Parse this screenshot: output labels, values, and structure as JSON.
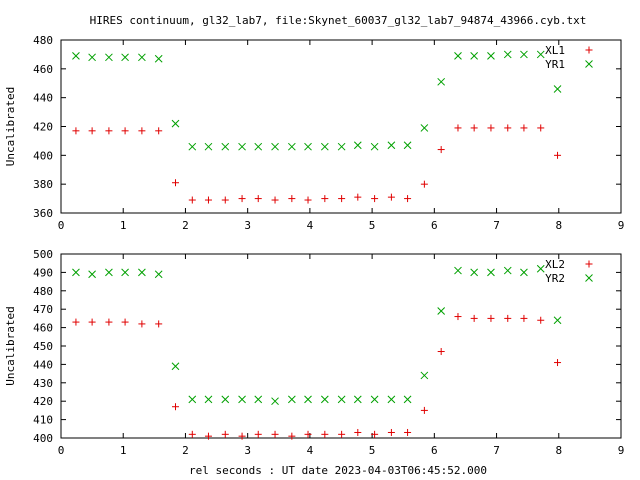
{
  "title": "HIRES continuum, gl32_lab7, file:Skynet_60037_gl32_lab7_94874_43966.cyb.txt",
  "xlabel": "rel seconds : UT date 2023-04-03T06:45:52.000",
  "colors": {
    "red": "#e00000",
    "green": "#00a000"
  },
  "chart_data": [
    {
      "type": "scatter",
      "ylabel": "Uncalibrated",
      "xlim": [
        0,
        9
      ],
      "ylim": [
        360,
        480
      ],
      "xticks": [
        0,
        1,
        2,
        3,
        4,
        5,
        6,
        7,
        8,
        9
      ],
      "yticks": [
        360,
        380,
        400,
        420,
        440,
        460,
        480
      ],
      "grid": false,
      "legend_position": "top-right",
      "series": [
        {
          "name": "XL1",
          "marker": "plus",
          "color": "#e00000",
          "x": [
            0.24,
            0.5,
            0.77,
            1.03,
            1.3,
            1.57,
            1.84,
            2.11,
            2.37,
            2.64,
            2.91,
            3.17,
            3.44,
            3.71,
            3.97,
            4.24,
            4.51,
            4.77,
            5.04,
            5.31,
            5.57,
            5.84,
            6.11,
            6.38,
            6.64,
            6.91,
            7.18,
            7.44,
            7.71,
            7.98
          ],
          "y": [
            417,
            417,
            417,
            417,
            417,
            417,
            381,
            369,
            369,
            369,
            370,
            370,
            369,
            370,
            369,
            370,
            370,
            371,
            370,
            371,
            370,
            380,
            404,
            419,
            419,
            419,
            419,
            419,
            419,
            400
          ]
        },
        {
          "name": "YR1",
          "marker": "cross",
          "color": "#00a000",
          "x": [
            0.24,
            0.5,
            0.77,
            1.03,
            1.3,
            1.57,
            1.84,
            2.11,
            2.37,
            2.64,
            2.91,
            3.17,
            3.44,
            3.71,
            3.97,
            4.24,
            4.51,
            4.77,
            5.04,
            5.31,
            5.57,
            5.84,
            6.11,
            6.38,
            6.64,
            6.91,
            7.18,
            7.44,
            7.71,
            7.98
          ],
          "y": [
            469,
            468,
            468,
            468,
            468,
            467,
            422,
            406,
            406,
            406,
            406,
            406,
            406,
            406,
            406,
            406,
            406,
            407,
            406,
            407,
            407,
            419,
            451,
            469,
            469,
            469,
            470,
            470,
            470,
            446
          ]
        }
      ]
    },
    {
      "type": "scatter",
      "ylabel": "Uncalibrated",
      "xlim": [
        0,
        9
      ],
      "ylim": [
        400,
        500
      ],
      "xticks": [
        0,
        1,
        2,
        3,
        4,
        5,
        6,
        7,
        8,
        9
      ],
      "yticks": [
        400,
        410,
        420,
        430,
        440,
        450,
        460,
        470,
        480,
        490,
        500
      ],
      "grid": false,
      "legend_position": "top-right",
      "series": [
        {
          "name": "XL2",
          "marker": "plus",
          "color": "#e00000",
          "x": [
            0.24,
            0.5,
            0.77,
            1.03,
            1.3,
            1.57,
            1.84,
            2.11,
            2.37,
            2.64,
            2.91,
            3.17,
            3.44,
            3.71,
            3.97,
            4.24,
            4.51,
            4.77,
            5.04,
            5.31,
            5.57,
            5.84,
            6.11,
            6.38,
            6.64,
            6.91,
            7.18,
            7.44,
            7.71,
            7.98
          ],
          "y": [
            463,
            463,
            463,
            463,
            462,
            462,
            417,
            402,
            401,
            402,
            401,
            402,
            402,
            401,
            402,
            402,
            402,
            403,
            402,
            403,
            403,
            415,
            447,
            466,
            465,
            465,
            465,
            465,
            464,
            441
          ]
        },
        {
          "name": "YR2",
          "marker": "cross",
          "color": "#00a000",
          "x": [
            0.24,
            0.5,
            0.77,
            1.03,
            1.3,
            1.57,
            1.84,
            2.11,
            2.37,
            2.64,
            2.91,
            3.17,
            3.44,
            3.71,
            3.97,
            4.24,
            4.51,
            4.77,
            5.04,
            5.31,
            5.57,
            5.84,
            6.11,
            6.38,
            6.64,
            6.91,
            7.18,
            7.44,
            7.71,
            7.98
          ],
          "y": [
            490,
            489,
            490,
            490,
            490,
            489,
            439,
            421,
            421,
            421,
            421,
            421,
            420,
            421,
            421,
            421,
            421,
            421,
            421,
            421,
            421,
            434,
            469,
            491,
            490,
            490,
            491,
            490,
            492,
            464
          ]
        }
      ]
    }
  ]
}
